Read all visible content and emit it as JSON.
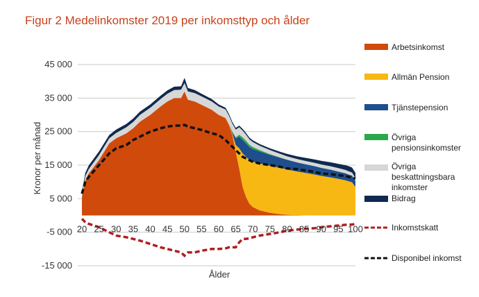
{
  "chart_data": {
    "type": "area",
    "title": "Figur 2 Medelinkomster 2019 per inkomsttyp och ålder",
    "xlabel": "Ålder",
    "ylabel": "Kronor per månad",
    "xlim": [
      20,
      100
    ],
    "ylim": [
      -20000,
      49000
    ],
    "x_ticks": [
      20,
      25,
      30,
      35,
      40,
      45,
      50,
      55,
      60,
      65,
      70,
      75,
      80,
      85,
      90,
      95,
      100
    ],
    "y_ticks": [
      45000,
      35000,
      25000,
      15000,
      5000,
      -5000,
      -15000
    ],
    "y_tick_labels": [
      "45 000",
      "35 000",
      "25 000",
      "15 000",
      "5 000",
      "-5 000",
      "-15 000"
    ],
    "grid": true,
    "legend_position": "right",
    "x": [
      20,
      21,
      22,
      25,
      28,
      30,
      33,
      35,
      37,
      40,
      43,
      45,
      47,
      49,
      50,
      51,
      53,
      55,
      58,
      60,
      62,
      63,
      64,
      65,
      66,
      67,
      68,
      69,
      70,
      72,
      75,
      78,
      80,
      83,
      85,
      88,
      90,
      93,
      95,
      97,
      98,
      99,
      100
    ],
    "series": [
      {
        "name": "Arbetsinkomst",
        "color": "#d04a0c",
        "values": [
          5500,
          10500,
          12500,
          16500,
          21500,
          23000,
          24500,
          26000,
          28000,
          30000,
          32500,
          34000,
          35000,
          35000,
          37000,
          34500,
          34000,
          33000,
          31500,
          30000,
          29000,
          27000,
          24000,
          19000,
          14000,
          8500,
          5500,
          3500,
          2500,
          1500,
          800,
          400,
          200,
          100,
          50,
          0,
          0,
          0,
          0,
          0,
          0,
          0,
          0
        ]
      },
      {
        "name": "Allmän Pension",
        "color": "#f7b813",
        "values": [
          0,
          0,
          0,
          0,
          0,
          0,
          0,
          0,
          0,
          0,
          0,
          0,
          0,
          0,
          0,
          0,
          0,
          0,
          0,
          0,
          100,
          200,
          500,
          2000,
          6000,
          10000,
          12000,
          13000,
          13500,
          14000,
          14000,
          13800,
          13500,
          13000,
          12700,
          12200,
          11800,
          11300,
          10900,
          10500,
          10200,
          9900,
          8500
        ]
      },
      {
        "name": "Tjänstepension",
        "color": "#1f4e8c",
        "values": [
          0,
          0,
          0,
          0,
          0,
          0,
          0,
          0,
          0,
          0,
          0,
          0,
          0,
          0,
          0,
          0,
          0,
          0,
          0,
          0,
          0,
          100,
          400,
          2000,
          3500,
          4000,
          4000,
          3900,
          3800,
          3600,
          3300,
          3000,
          2900,
          2700,
          2600,
          2500,
          2400,
          2300,
          2200,
          2100,
          2000,
          2000,
          1800
        ]
      },
      {
        "name": "Övriga pensionsinkomster",
        "color": "#2aa84a",
        "values": [
          0,
          0,
          0,
          0,
          0,
          0,
          0,
          0,
          0,
          0,
          0,
          0,
          0,
          0,
          0,
          0,
          0,
          0,
          0,
          0,
          0,
          0,
          100,
          300,
          600,
          800,
          800,
          700,
          600,
          400,
          200,
          100,
          50,
          0,
          0,
          0,
          0,
          0,
          0,
          0,
          0,
          0,
          0
        ]
      },
      {
        "name": "Övriga beskattningsbara inkomster",
        "color": "#d7d7d7",
        "values": [
          800,
          1200,
          1300,
          1500,
          1500,
          1600,
          1800,
          1900,
          2000,
          2100,
          2200,
          2300,
          2400,
          2500,
          2500,
          2500,
          2500,
          2500,
          2500,
          2500,
          2500,
          2500,
          2400,
          2300,
          2200,
          2000,
          1800,
          1600,
          1500,
          1300,
          1200,
          1100,
          1000,
          1000,
          1000,
          1000,
          1000,
          1000,
          1000,
          1000,
          1000,
          900,
          900
        ]
      },
      {
        "name": "Bidrag",
        "color": "#0f2a4f",
        "values": [
          700,
          1000,
          1100,
          1100,
          1000,
          1000,
          1000,
          1000,
          1000,
          1000,
          1000,
          1000,
          1000,
          1000,
          1500,
          1000,
          900,
          800,
          700,
          600,
          500,
          500,
          500,
          500,
          500,
          500,
          500,
          500,
          500,
          500,
          500,
          600,
          700,
          800,
          900,
          1000,
          1100,
          1200,
          1300,
          1400,
          1500,
          1500,
          1500
        ]
      }
    ],
    "lines": [
      {
        "name": "Inkomstskatt",
        "color": "#b01e23",
        "values": [
          -1000,
          -2000,
          -2500,
          -3500,
          -5000,
          -6000,
          -6500,
          -7000,
          -7500,
          -8500,
          -9500,
          -10000,
          -10500,
          -11000,
          -12000,
          -11000,
          -11000,
          -10500,
          -10000,
          -10000,
          -9800,
          -9500,
          -9500,
          -9500,
          -8000,
          -7000,
          -7000,
          -6800,
          -6500,
          -6000,
          -5500,
          -5000,
          -4500,
          -4200,
          -4000,
          -3800,
          -3500,
          -3200,
          -3000,
          -2800,
          -2700,
          -2700,
          -2500
        ]
      },
      {
        "name": "Disponibel inkomst",
        "color": "#111111",
        "values": [
          6500,
          10000,
          11500,
          15000,
          18500,
          20000,
          21000,
          22500,
          23500,
          25000,
          26000,
          26500,
          26800,
          26800,
          27000,
          26500,
          26000,
          25500,
          24500,
          24000,
          22500,
          21500,
          20500,
          19500,
          18500,
          17500,
          17000,
          16500,
          16000,
          15500,
          15000,
          14500,
          14000,
          13800,
          13500,
          13000,
          12500,
          12300,
          12000,
          11800,
          11500,
          11300,
          11000
        ]
      }
    ],
    "x_ticks_text": [
      "20",
      "25",
      "30",
      "35",
      "40",
      "45",
      "50",
      "55",
      "60",
      "65",
      "70",
      "75",
      "80",
      "85",
      "90",
      "95",
      "100"
    ]
  },
  "legend": {
    "arbetsinkomst": "Arbetsinkomst",
    "allman_pension": "Allmän Pension",
    "tjanstepension": "Tjänstepension",
    "ovriga_pension_1": "Övriga",
    "ovriga_pension_2": "pensionsinkomster",
    "ovriga_besk_1": "Övriga",
    "ovriga_besk_2": "beskattningsbara",
    "ovriga_besk_3": "inkomster",
    "bidrag": "Bidrag",
    "inkomstskatt": "Inkomstskatt",
    "disponibel": "Disponibel inkomst"
  },
  "colors": {
    "title": "#c8421b",
    "grid": "#c9c9c9",
    "axis_text": "#333333"
  }
}
